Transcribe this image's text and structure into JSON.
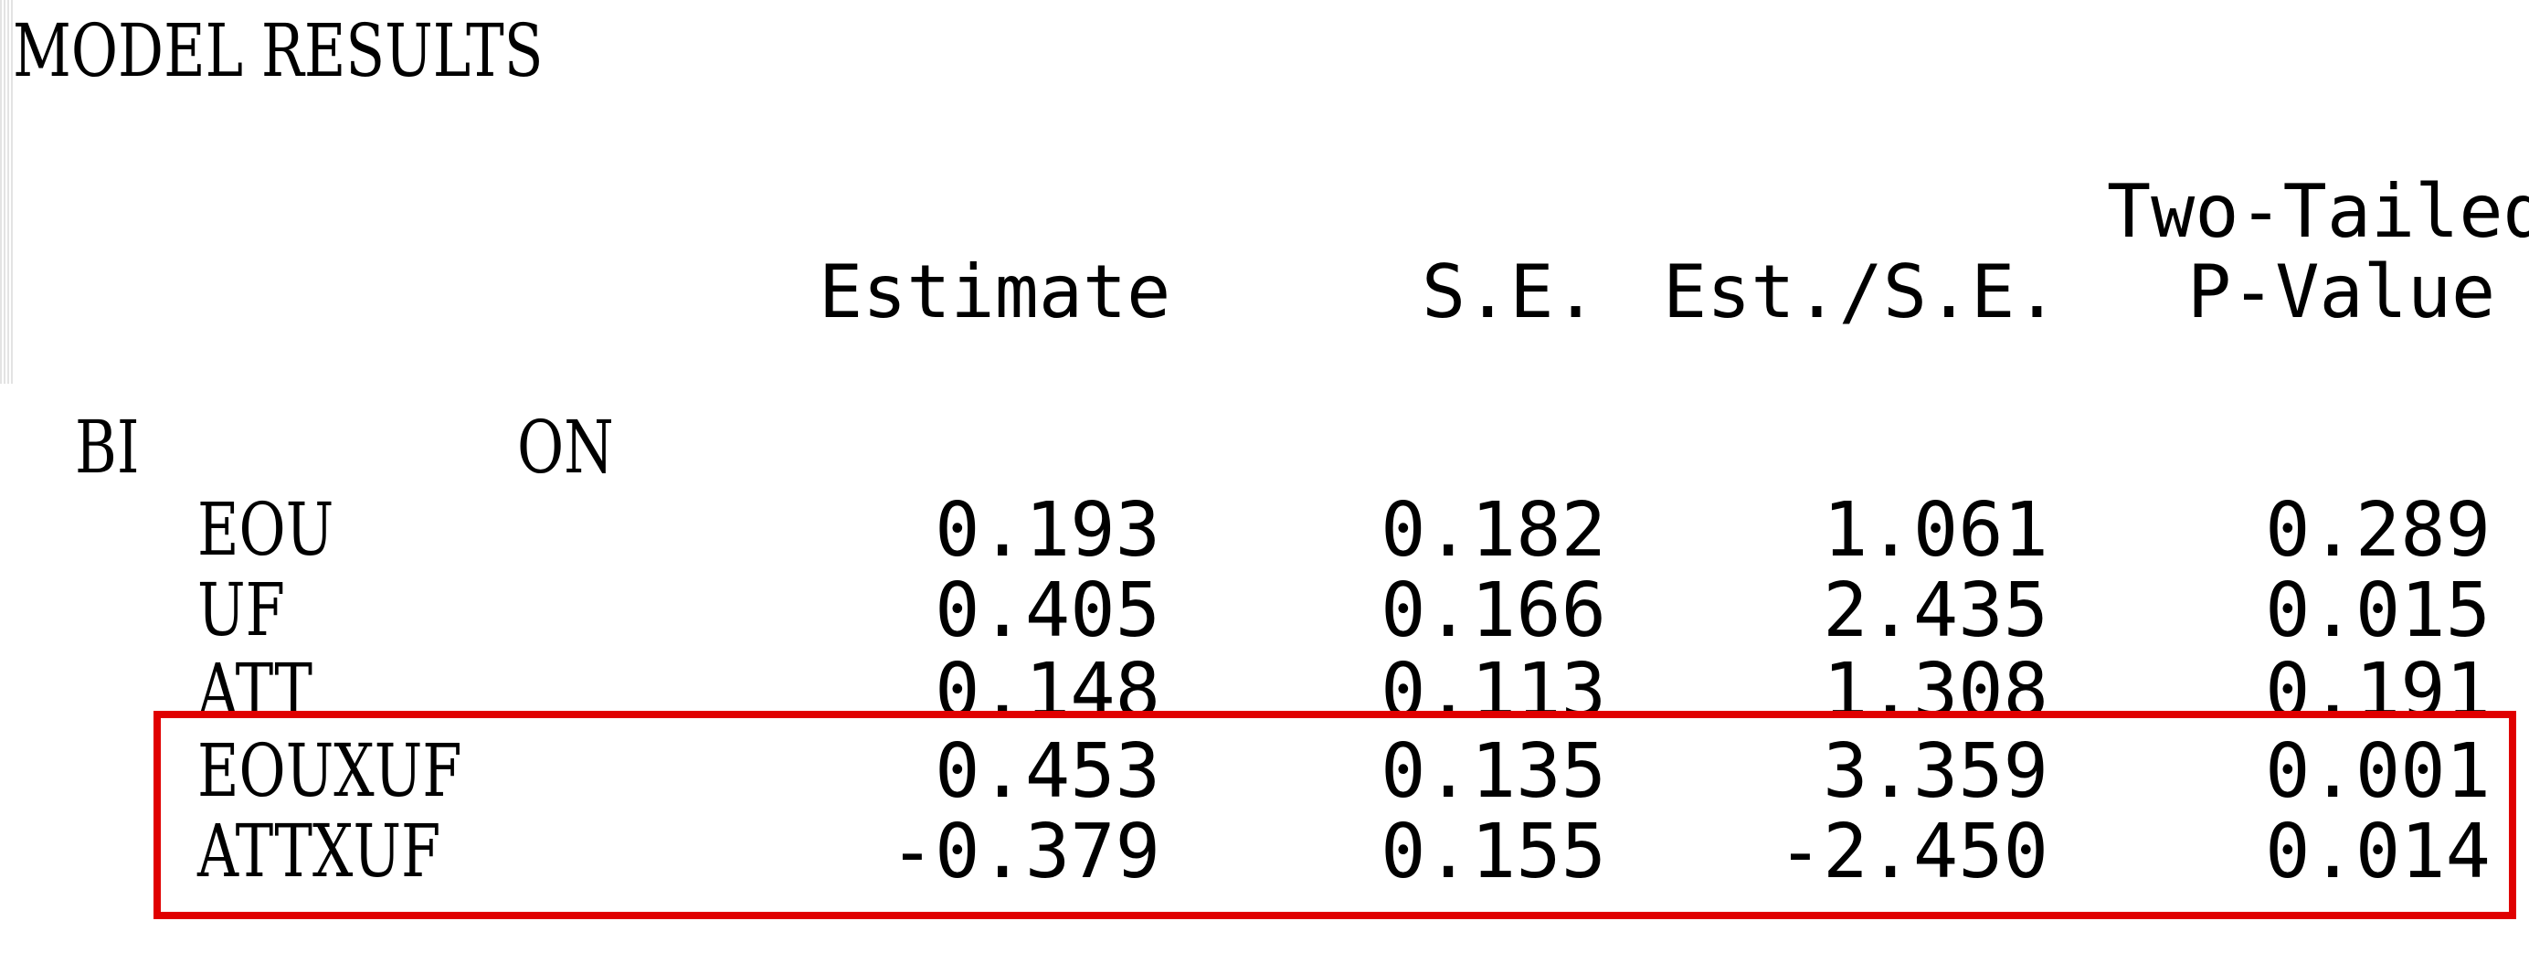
{
  "title": "MODEL RESULTS",
  "columns": {
    "estimate": "Estimate",
    "se": "S.E.",
    "est_se": "Est./S.E.",
    "pvalue_line1": "Two-Tailed",
    "pvalue_line2": "P-Value"
  },
  "group": {
    "dependent": "BI",
    "relation": "ON"
  },
  "rows": [
    {
      "name": "EOU",
      "estimate": "0.193",
      "se": "0.182",
      "est_se": "1.061",
      "pvalue": "0.289"
    },
    {
      "name": "UF",
      "estimate": "0.405",
      "se": "0.166",
      "est_se": "2.435",
      "pvalue": "0.015"
    },
    {
      "name": "ATT",
      "estimate": "0.148",
      "se": "0.113",
      "est_se": "1.308",
      "pvalue": "0.191"
    },
    {
      "name": "EOUXUF",
      "estimate": "0.453",
      "se": "0.135",
      "est_se": "3.359",
      "pvalue": "0.001"
    },
    {
      "name": "ATTXUF",
      "estimate": "-0.379",
      "se": "0.155",
      "est_se": "-2.450",
      "pvalue": "0.014"
    }
  ],
  "highlight_color": "#e00000"
}
